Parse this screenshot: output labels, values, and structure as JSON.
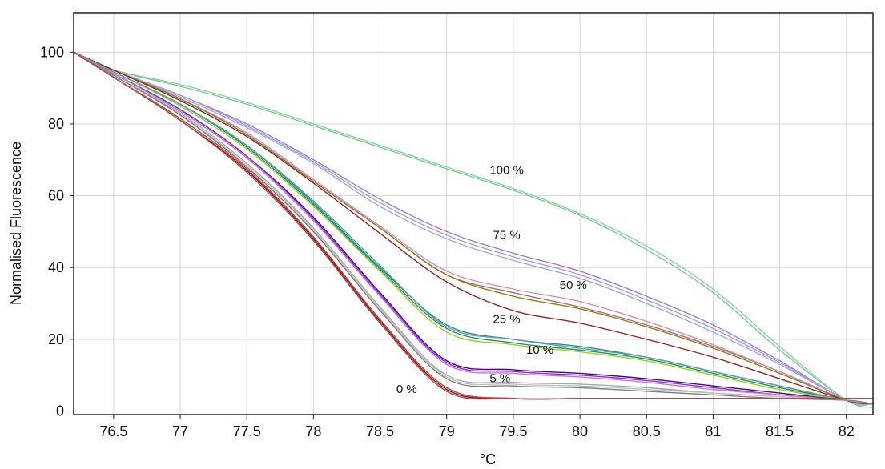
{
  "chart_data": {
    "type": "line",
    "title": "",
    "xlabel": "°C",
    "ylabel": "Normalised Fluorescence",
    "xlim": [
      76.2,
      82.2
    ],
    "ylim": [
      -1,
      111
    ],
    "x_ticks": [
      "76.5",
      "77",
      "77.5",
      "78",
      "78.5",
      "79",
      "79.5",
      "80",
      "80.5",
      "81",
      "81.5",
      "82"
    ],
    "y_ticks": [
      "0",
      "20",
      "40",
      "60",
      "80",
      "100"
    ],
    "grid": true,
    "legend": "none",
    "x": [
      76.2,
      76.5,
      77,
      77.5,
      78,
      78.5,
      79,
      79.5,
      80,
      80.5,
      81,
      81.5,
      82,
      82.2
    ],
    "series": [
      {
        "name": "",
        "color": "#8fd19e",
        "values": [
          100,
          95,
          91,
          86,
          80,
          74,
          68,
          62,
          55,
          46,
          34,
          18,
          3,
          2
        ]
      },
      {
        "name": "",
        "color": "#7ec8a0",
        "values": [
          100,
          95,
          90.5,
          85.5,
          79.5,
          73.5,
          67.5,
          61.5,
          54.5,
          45,
          33,
          17,
          3,
          1
        ]
      },
      {
        "name": "",
        "color": "#9b7fd4",
        "values": [
          100,
          95,
          88,
          80,
          70,
          59,
          50,
          44,
          39,
          32,
          24,
          14,
          3,
          2
        ]
      },
      {
        "name": "",
        "color": "#9aafd0",
        "values": [
          100,
          95,
          87.5,
          79,
          69,
          57,
          48,
          42,
          37,
          30,
          22,
          13,
          3,
          2
        ]
      },
      {
        "name": "",
        "color": "#b39ad4",
        "values": [
          100,
          95,
          88,
          79.5,
          69.5,
          58,
          49,
          43,
          38,
          31,
          23,
          13.5,
          3,
          2
        ]
      },
      {
        "name": "",
        "color": "#a07860",
        "values": [
          100,
          95,
          87,
          77,
          64,
          51,
          38,
          33,
          29,
          24,
          18,
          11,
          3,
          2
        ]
      },
      {
        "name": "",
        "color": "#d08cc0",
        "values": [
          100,
          95,
          87,
          77.5,
          64.5,
          51.5,
          39,
          34,
          30.5,
          25,
          18.5,
          11,
          3,
          2
        ]
      },
      {
        "name": "",
        "color": "#8b7d2a",
        "values": [
          100,
          95,
          87,
          77,
          64,
          51,
          38,
          32,
          28.5,
          23.5,
          17.5,
          10.5,
          3,
          2
        ]
      },
      {
        "name": "",
        "color": "#8b2a2a",
        "values": [
          100,
          95,
          86.5,
          76.5,
          63.5,
          49.5,
          36,
          28,
          24.5,
          20,
          15,
          9,
          3,
          2
        ]
      },
      {
        "name": "",
        "color": "#1f8f8f",
        "values": [
          100,
          94.5,
          85.5,
          74,
          58,
          40,
          24,
          20,
          18,
          15,
          11,
          7,
          3,
          2
        ]
      },
      {
        "name": "",
        "color": "#2e8b57",
        "values": [
          100,
          94.5,
          85.5,
          73.5,
          57.5,
          39.5,
          23,
          19,
          17,
          14.5,
          10.5,
          6.5,
          3,
          2
        ]
      },
      {
        "name": "",
        "color": "#9acd32",
        "values": [
          100,
          94.5,
          85,
          73,
          57,
          39,
          22,
          18.5,
          16.5,
          14,
          10,
          6,
          3,
          2
        ]
      },
      {
        "name": "",
        "color": "#5f9ea0",
        "values": [
          100,
          94.5,
          85.5,
          74,
          58.5,
          40.5,
          23.5,
          20,
          17.5,
          15,
          11,
          7,
          3,
          2
        ]
      },
      {
        "name": "",
        "color": "#4b0082",
        "values": [
          100,
          94,
          84,
          71,
          54,
          33,
          14,
          11.5,
          10.5,
          9,
          7,
          5,
          3,
          2
        ]
      },
      {
        "name": "",
        "color": "#8a2be2",
        "values": [
          100,
          94,
          84,
          71,
          53.5,
          32.5,
          13.5,
          11,
          10,
          8.5,
          6.5,
          4.5,
          3,
          2
        ]
      },
      {
        "name": "",
        "color": "#c080c0",
        "values": [
          100,
          94,
          83.5,
          70.5,
          53,
          32,
          13,
          10.5,
          9.5,
          8,
          6,
          4.5,
          3,
          2
        ]
      },
      {
        "name": "",
        "color": "#a9a9a9",
        "values": [
          100,
          93.5,
          83,
          69,
          51,
          29,
          10,
          8,
          7.5,
          6.5,
          5,
          4,
          3,
          2
        ]
      },
      {
        "name": "",
        "color": "#c0c0c0",
        "values": [
          100,
          93.5,
          82.5,
          68.5,
          50.5,
          28.5,
          9.5,
          7.5,
          7,
          6,
          5,
          4,
          3,
          2
        ]
      },
      {
        "name": "",
        "color": "#808080",
        "values": [
          100,
          93.5,
          82.5,
          68,
          50,
          28,
          9,
          7,
          6.5,
          5.5,
          4.5,
          3.5,
          3,
          2
        ]
      },
      {
        "name": "",
        "color": "#8b1a1a",
        "values": [
          100,
          93,
          81,
          67,
          48,
          25,
          6,
          3.5,
          3.5,
          3.5,
          3.5,
          3.5,
          3.5,
          3.5
        ]
      },
      {
        "name": "",
        "color": "#c04040",
        "values": [
          100,
          93,
          81.5,
          67.5,
          48.5,
          25.5,
          6.5,
          3.5,
          3.5,
          3.5,
          3.5,
          3.5,
          3.5,
          3.5
        ]
      },
      {
        "name": "",
        "color": "#a05050",
        "values": [
          100,
          93,
          81,
          66.5,
          47.5,
          24.5,
          5.5,
          3.5,
          3.5,
          3.5,
          3.5,
          3.5,
          3.5,
          3.5
        ]
      }
    ],
    "annotations": [
      {
        "text": "100 %",
        "x": 79.45,
        "y": 66
      },
      {
        "text": "75 %",
        "x": 79.45,
        "y": 48
      },
      {
        "text": "50 %",
        "x": 79.95,
        "y": 34
      },
      {
        "text": "25 %",
        "x": 79.45,
        "y": 24.5
      },
      {
        "text": "10 %",
        "x": 79.7,
        "y": 16
      },
      {
        "text": "5 %",
        "x": 79.4,
        "y": 8
      },
      {
        "text": "0 %",
        "x": 78.7,
        "y": 5
      }
    ]
  }
}
